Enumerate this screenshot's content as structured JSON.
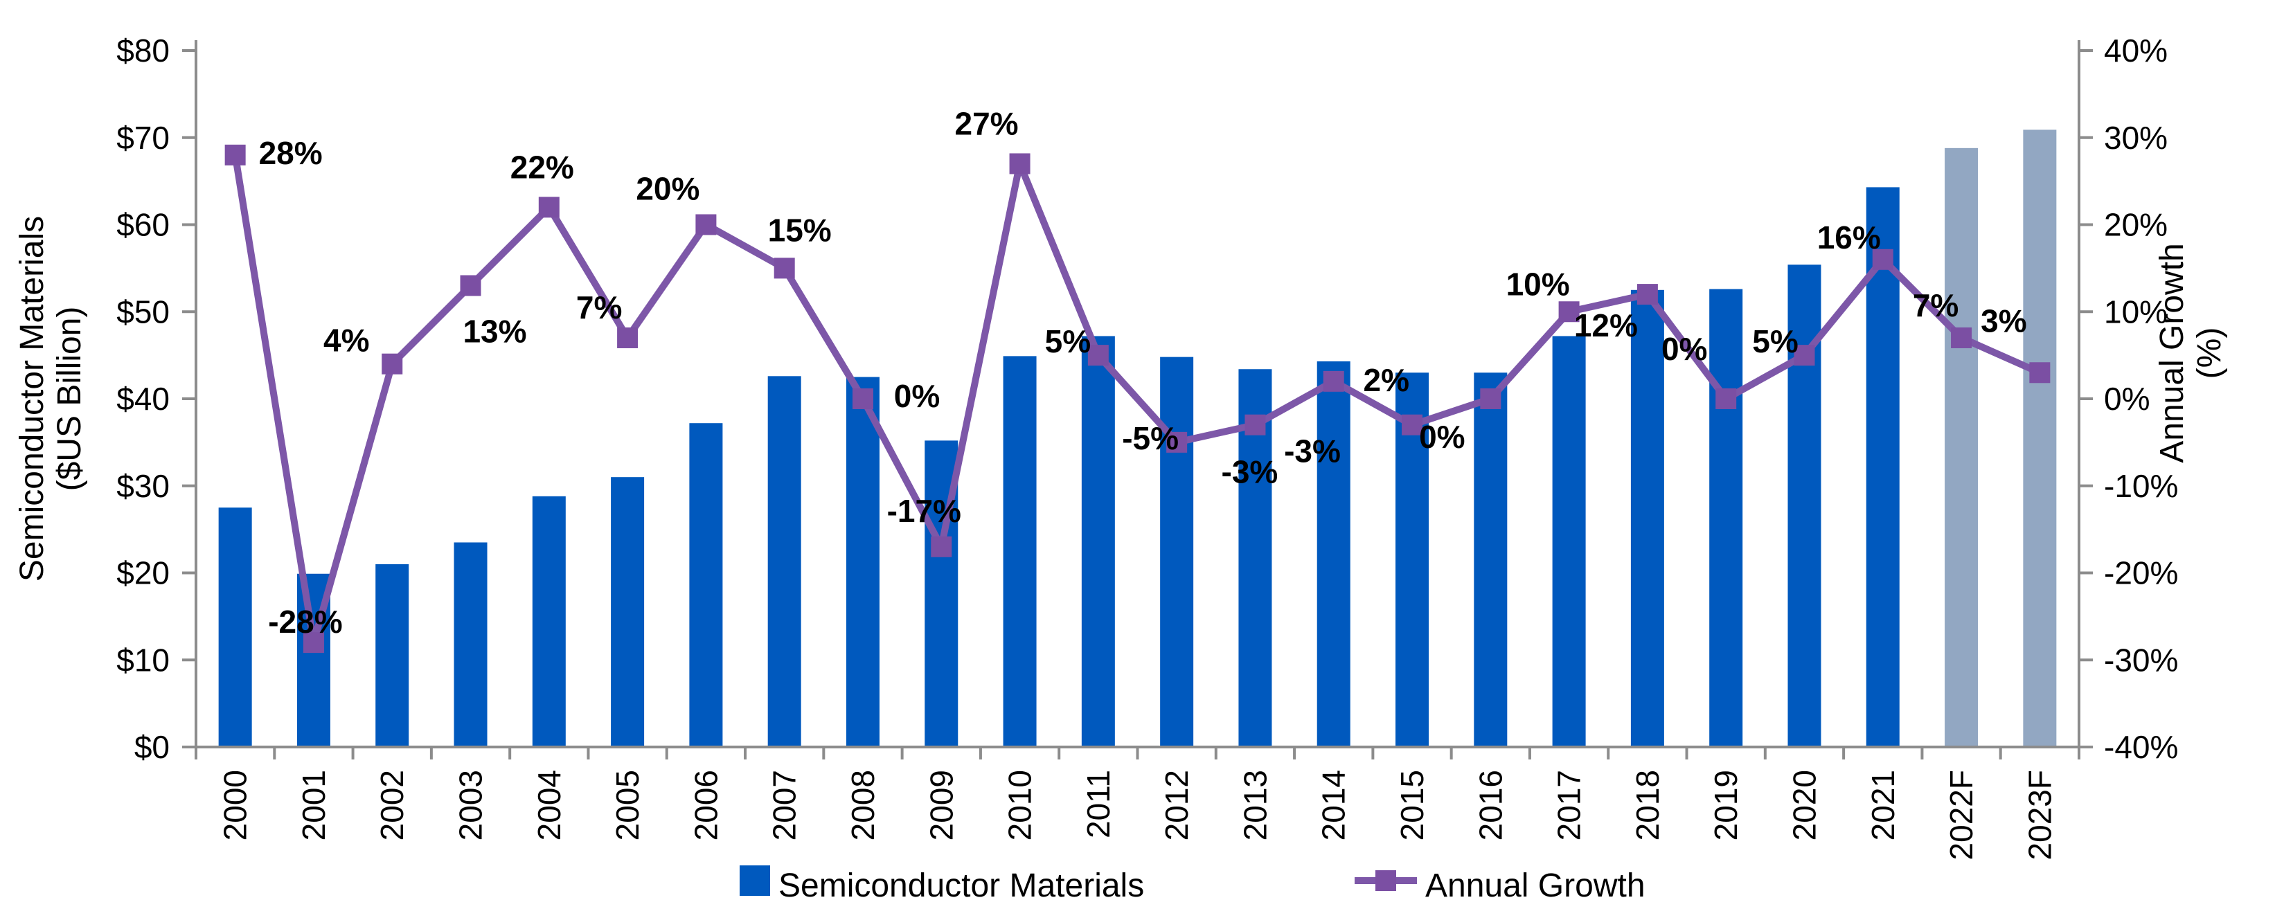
{
  "chart_data": {
    "type": "bar+line-combo",
    "title": "",
    "categories": [
      "2000",
      "2001",
      "2002",
      "2003",
      "2004",
      "2005",
      "2006",
      "2007",
      "2008",
      "2009",
      "2010",
      "2011",
      "2012",
      "2013",
      "2014",
      "2015",
      "2016",
      "2017",
      "2018",
      "2019",
      "2020",
      "2021",
      "2022F",
      "2023F"
    ],
    "forecast": [
      "2022F",
      "2023F"
    ],
    "series": [
      {
        "name": "Semiconductor Materials",
        "type": "bar",
        "axis": "left",
        "unit": "$US Billion",
        "values": [
          27.5,
          19.9,
          21.0,
          23.5,
          28.8,
          31.0,
          37.2,
          42.6,
          42.5,
          35.2,
          44.9,
          47.2,
          44.8,
          43.4,
          44.3,
          43.0,
          43.0,
          47.2,
          52.5,
          52.6,
          55.4,
          64.3,
          68.8,
          70.9
        ]
      },
      {
        "name": "Annual Growth",
        "type": "line",
        "axis": "right",
        "unit": "%",
        "values": [
          28,
          -28,
          4,
          13,
          22,
          7,
          20,
          15,
          0,
          -17,
          27,
          5,
          -5,
          -3,
          2,
          -3,
          0,
          10,
          12,
          0,
          5,
          16,
          7,
          3
        ],
        "labels": [
          "28%",
          "-28%",
          "4%",
          "13%",
          "22%",
          "7%",
          "20%",
          "15%",
          "0%",
          "-17%",
          "27%",
          "5%",
          "-5%",
          "-3%",
          "2%",
          "-3%",
          "0%",
          "10%",
          "12%",
          "0%",
          "5%",
          "16%",
          "7%",
          "3%"
        ]
      }
    ],
    "left_axis": {
      "title_lines": [
        "Semiconductor Materials",
        "($US Billion)"
      ],
      "ticks": [
        "$0",
        "$10",
        "$20",
        "$30",
        "$40",
        "$50",
        "$60",
        "$70",
        "$80"
      ],
      "min": 0,
      "max": 80,
      "step": 10
    },
    "right_axis": {
      "title_lines": [
        "Annual Growth",
        "(%)"
      ],
      "ticks": [
        "-40%",
        "-30%",
        "-20%",
        "-10%",
        "0%",
        "10%",
        "20%",
        "30%",
        "40%"
      ],
      "min": -40,
      "max": 40,
      "step": 10
    },
    "legend": [
      {
        "label": "Semiconductor Materials",
        "swatch": "bar"
      },
      {
        "label": "Annual Growth",
        "swatch": "line-marker"
      }
    ],
    "legend_position": "bottom-center",
    "grid": false,
    "colors": {
      "bar": "#0059BE",
      "bar_forecast": "#92A7C2",
      "line": "#7D57A8",
      "marker": "#7B4FA3",
      "axis": "#8C8C8C",
      "label": "#000000"
    }
  }
}
